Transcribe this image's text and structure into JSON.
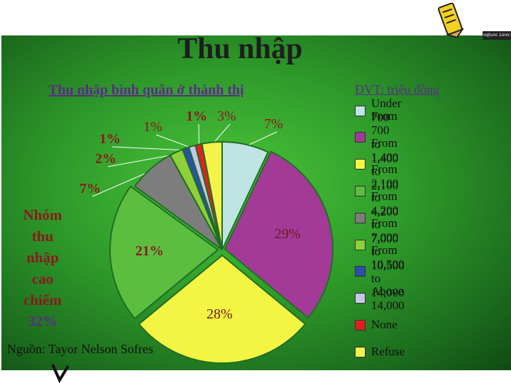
{
  "slide": {
    "title": "Thu nhập",
    "subtitle": "Thu nhập bình quân ở thành thị",
    "unit": "ĐVT: triệu đồng",
    "group_note": "Nhóm thu nhập cao chiếm",
    "group_pct": "32%",
    "source": "Nguồn: Tayor Nelson Sofres",
    "corner_badge": "oqtunc Lonic"
  },
  "chart_data": {
    "type": "pie",
    "title": "Thu nhập bình quân ở thành thị",
    "unit": "ĐVT: triệu đồng",
    "legend_position": "right",
    "slices": [
      {
        "name": "Under 700",
        "value": 7,
        "label": "7%",
        "color": "#bfe4e4"
      },
      {
        "name": "From 700 to 1,400",
        "value": 29,
        "label": "29%",
        "color": "#a33a97"
      },
      {
        "name": "From 1,400 to 2,100",
        "value": 28,
        "label": "28%",
        "color": "#f3f542"
      },
      {
        "name": "From 2,100 to 4,200",
        "value": 21,
        "label": "21%",
        "color": "#5bbe3f"
      },
      {
        "name": "From 4,200 to 7,000",
        "value": 7,
        "label": "7%",
        "color": "#7d7d7d"
      },
      {
        "name": "From 7,000 to 10,500",
        "value": 2,
        "label": "2%",
        "color": "#8fd03a"
      },
      {
        "name": "From 10,500 to 14,000",
        "value": 1,
        "label": "1%",
        "color": "#2a4fb0"
      },
      {
        "name": "Above 14,000",
        "value": 1,
        "label": "1%",
        "color": "#c6c6e6"
      },
      {
        "name": "None",
        "value": 1,
        "label": "1%",
        "color": "#e02020"
      },
      {
        "name": "Refuse",
        "value": 3,
        "label": "3%",
        "color": "#f5f24a"
      }
    ]
  }
}
